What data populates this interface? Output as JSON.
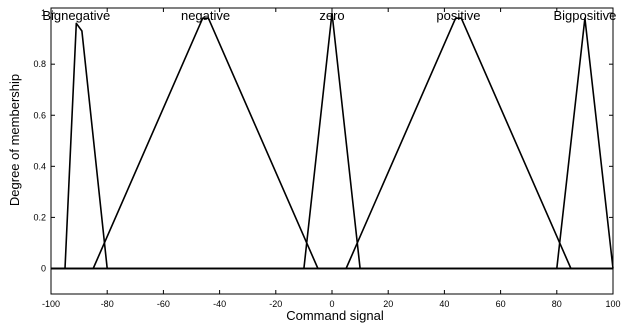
{
  "chart_data": {
    "type": "line",
    "title": "",
    "xlabel": "Command signal",
    "ylabel": "Degree of membership",
    "xlim": [
      -100,
      100
    ],
    "ylim": [
      -0.1,
      1.02
    ],
    "x_ticks": [
      -100,
      -80,
      -60,
      -40,
      -20,
      0,
      20,
      40,
      60,
      80,
      100
    ],
    "y_ticks": [
      0,
      0.2,
      0.4,
      0.6,
      0.8,
      1
    ],
    "grid": false,
    "legend": "none",
    "series": [
      {
        "name": "Bignegative",
        "x": [
          -100,
          -95,
          -91,
          -89,
          -80,
          100
        ],
        "y": [
          0,
          0,
          0.96,
          0.93,
          0,
          0
        ]
      },
      {
        "name": "negative",
        "x": [
          -100,
          -85,
          -46,
          -44,
          -5,
          100
        ],
        "y": [
          0,
          0,
          0.98,
          0.98,
          0,
          0
        ]
      },
      {
        "name": "zero",
        "x": [
          -100,
          -10,
          0,
          10,
          100
        ],
        "y": [
          0,
          0,
          1,
          0,
          0
        ]
      },
      {
        "name": "positive",
        "x": [
          -100,
          5,
          44,
          46,
          85,
          100
        ],
        "y": [
          0,
          0,
          0.98,
          0.98,
          0,
          0
        ]
      },
      {
        "name": "Bigpositive",
        "x": [
          -100,
          80,
          90,
          100
        ],
        "y": [
          0,
          0,
          0.98,
          0
        ]
      }
    ]
  }
}
